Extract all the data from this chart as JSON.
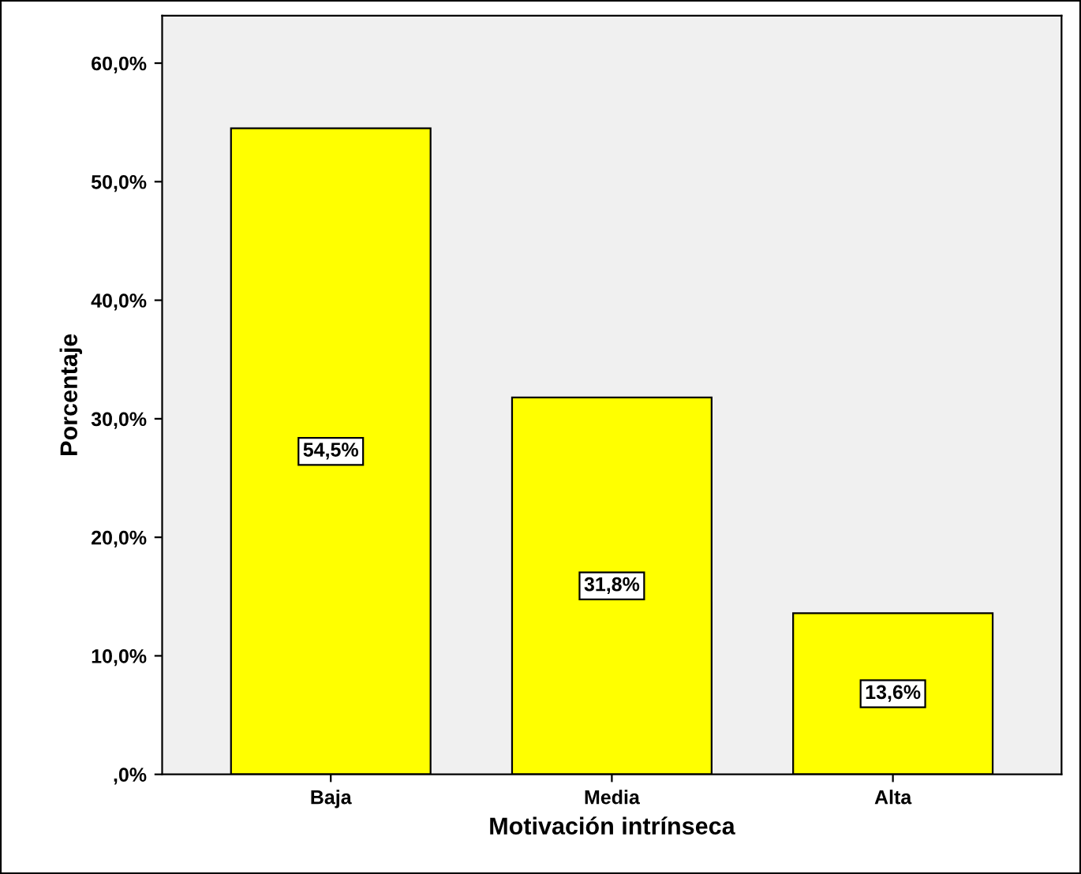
{
  "chart_data": {
    "type": "bar",
    "xlabel": "Motivación intrínseca",
    "ylabel": "Porcentaje",
    "categories": [
      "Baja",
      "Media",
      "Alta"
    ],
    "values": [
      54.5,
      31.8,
      13.6
    ],
    "value_labels": [
      "54,5%",
      "31,8%",
      "13,6%"
    ],
    "color": "#ffff00",
    "ylim": [
      0,
      64
    ],
    "yticks": [
      {
        "value": 0,
        "label": ",0%"
      },
      {
        "value": 10,
        "label": "10,0%"
      },
      {
        "value": 20,
        "label": "20,0%"
      },
      {
        "value": 30,
        "label": "30,0%"
      },
      {
        "value": 40,
        "label": "40,0%"
      },
      {
        "value": 50,
        "label": "50,0%"
      },
      {
        "value": 60,
        "label": "60,0%"
      }
    ],
    "grid": false
  }
}
